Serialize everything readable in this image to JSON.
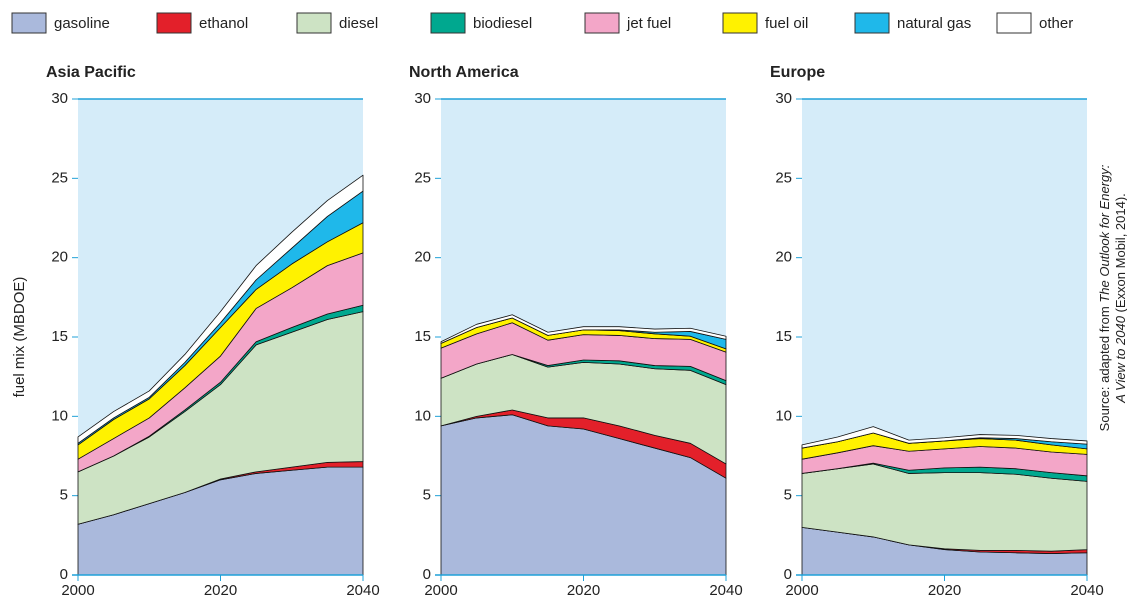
{
  "legend": [
    {
      "name": "gasoline",
      "color": "#aab9dc"
    },
    {
      "name": "ethanol",
      "color": "#e3202a"
    },
    {
      "name": "diesel",
      "color": "#cde3c4"
    },
    {
      "name": "biodiesel",
      "color": "#00a88f"
    },
    {
      "name": "jet fuel",
      "color": "#f3a6c8"
    },
    {
      "name": "fuel oil",
      "color": "#fff200"
    },
    {
      "name": "natural gas",
      "color": "#1fb8ea"
    },
    {
      "name": "other",
      "color": "#ffffff"
    }
  ],
  "source": {
    "prefix": "Source: adapted from",
    "title_line1": "The Outlook for Energy:",
    "title_line2": "A View to 2040",
    "suffix": "(Exxon Mobil, 2014)."
  },
  "chart_data": [
    {
      "type": "stacked-area",
      "title": "Asia Pacific",
      "ylabel": "fuel mix (MBDOE)",
      "x": [
        2000,
        2005,
        2010,
        2015,
        2020,
        2025,
        2030,
        2035,
        2040
      ],
      "xlim": [
        2000,
        2040
      ],
      "xticks": [
        2000,
        2020,
        2040
      ],
      "ylim": [
        0,
        30
      ],
      "yticks": [
        0,
        5,
        10,
        15,
        20,
        25,
        30
      ],
      "series": [
        {
          "values": [
            3.2,
            3.8,
            4.5,
            5.2,
            6.0,
            6.4,
            6.6,
            6.8,
            6.8
          ]
        },
        {
          "values": [
            0,
            0,
            0,
            0,
            0.05,
            0.1,
            0.2,
            0.3,
            0.35
          ]
        },
        {
          "values": [
            3.3,
            3.7,
            4.2,
            5.1,
            5.95,
            8.0,
            8.5,
            9.0,
            9.45
          ]
        },
        {
          "values": [
            0,
            0,
            0.05,
            0.1,
            0.15,
            0.2,
            0.3,
            0.35,
            0.4
          ]
        },
        {
          "values": [
            0.8,
            1.1,
            1.15,
            1.4,
            1.65,
            2.1,
            2.5,
            3.05,
            3.3
          ]
        },
        {
          "values": [
            0.9,
            1.2,
            1.2,
            1.4,
            1.8,
            1.2,
            1.5,
            1.5,
            1.9
          ]
        },
        {
          "values": [
            0.1,
            0.1,
            0.1,
            0.2,
            0.3,
            0.6,
            1.0,
            1.6,
            2.0
          ]
        },
        {
          "values": [
            0.4,
            0.4,
            0.4,
            0.5,
            0.7,
            0.9,
            1.0,
            1.0,
            1.0
          ]
        }
      ]
    },
    {
      "type": "stacked-area",
      "title": "North America",
      "x": [
        2000,
        2005,
        2010,
        2015,
        2020,
        2025,
        2030,
        2035,
        2040
      ],
      "xlim": [
        2000,
        2040
      ],
      "xticks": [
        2000,
        2020,
        2040
      ],
      "ylim": [
        0,
        30
      ],
      "yticks": [
        0,
        5,
        10,
        15,
        20,
        25,
        30
      ],
      "series": [
        {
          "values": [
            9.4,
            9.9,
            10.1,
            9.4,
            9.2,
            8.6,
            8.0,
            7.4,
            6.1
          ]
        },
        {
          "values": [
            0,
            0.1,
            0.3,
            0.5,
            0.7,
            0.8,
            0.8,
            0.9,
            0.9
          ]
        },
        {
          "values": [
            3.0,
            3.3,
            3.5,
            3.2,
            3.5,
            3.9,
            4.2,
            4.6,
            5.0
          ]
        },
        {
          "values": [
            0,
            0,
            0,
            0.1,
            0.15,
            0.2,
            0.2,
            0.25,
            0.25
          ]
        },
        {
          "values": [
            1.9,
            1.9,
            2.0,
            1.6,
            1.6,
            1.6,
            1.7,
            1.7,
            1.8
          ]
        },
        {
          "values": [
            0.3,
            0.4,
            0.3,
            0.3,
            0.3,
            0.3,
            0.3,
            0.2,
            0.2
          ]
        },
        {
          "values": [
            0,
            0,
            0,
            0,
            0,
            0.05,
            0.1,
            0.3,
            0.6
          ]
        },
        {
          "values": [
            0.1,
            0.2,
            0.2,
            0.2,
            0.2,
            0.2,
            0.2,
            0.2,
            0.2
          ]
        }
      ]
    },
    {
      "type": "stacked-area",
      "title": "Europe",
      "x": [
        2000,
        2005,
        2010,
        2015,
        2020,
        2025,
        2030,
        2035,
        2040
      ],
      "xlim": [
        2000,
        2040
      ],
      "xticks": [
        2000,
        2020,
        2040
      ],
      "ylim": [
        0,
        30
      ],
      "yticks": [
        0,
        5,
        10,
        15,
        20,
        25,
        30
      ],
      "series": [
        {
          "values": [
            3.0,
            2.7,
            2.4,
            1.9,
            1.6,
            1.45,
            1.4,
            1.35,
            1.4
          ]
        },
        {
          "values": [
            0,
            0,
            0,
            0,
            0.05,
            0.1,
            0.15,
            0.15,
            0.2
          ]
        },
        {
          "values": [
            3.4,
            4.0,
            4.6,
            4.5,
            4.8,
            4.9,
            4.8,
            4.6,
            4.3
          ]
        },
        {
          "values": [
            0,
            0,
            0.05,
            0.2,
            0.3,
            0.35,
            0.35,
            0.35,
            0.35
          ]
        },
        {
          "values": [
            0.9,
            1.0,
            1.1,
            1.2,
            1.2,
            1.3,
            1.3,
            1.3,
            1.35
          ]
        },
        {
          "values": [
            0.7,
            0.7,
            0.8,
            0.5,
            0.5,
            0.5,
            0.5,
            0.45,
            0.35
          ]
        },
        {
          "values": [
            0,
            0,
            0,
            0,
            0,
            0.05,
            0.1,
            0.2,
            0.3
          ]
        },
        {
          "values": [
            0.2,
            0.3,
            0.4,
            0.2,
            0.2,
            0.2,
            0.2,
            0.2,
            0.2
          ]
        }
      ]
    }
  ]
}
